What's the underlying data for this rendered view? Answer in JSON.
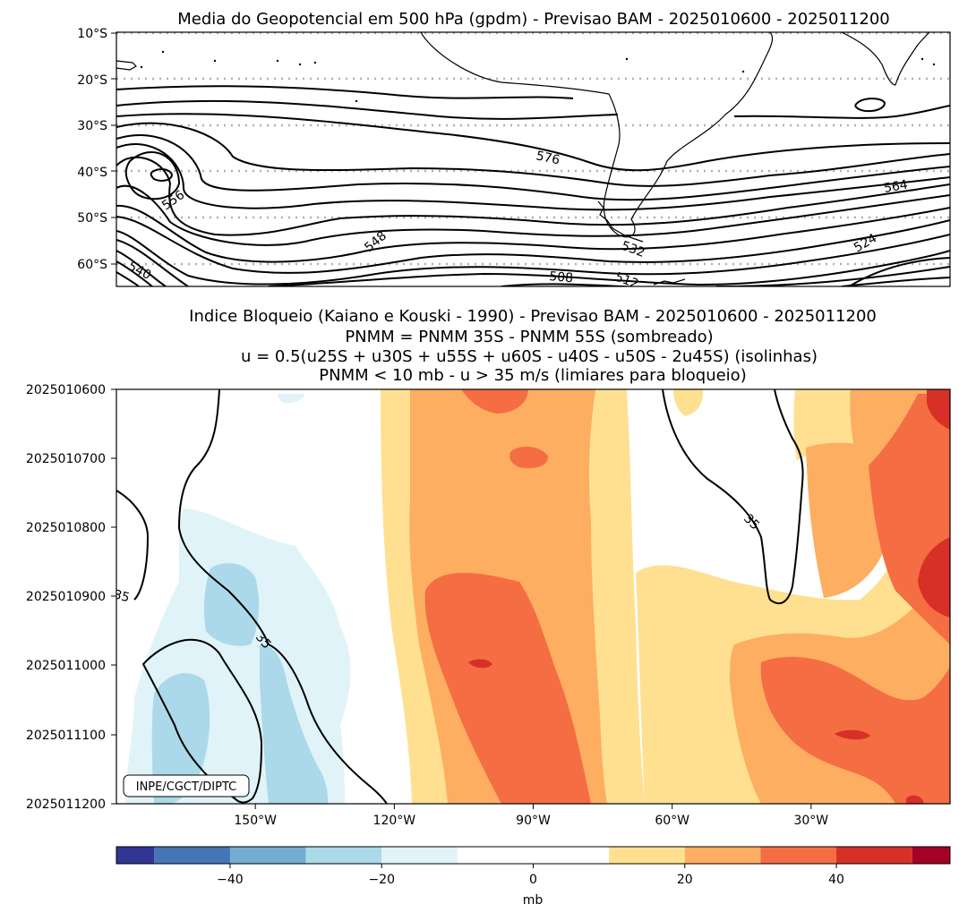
{
  "chart_data": [
    {
      "type": "contour-map",
      "title": "Media do Geopotencial em 500 hPa (gpdm) - Previsao BAM - 2025010600 - 2025011200",
      "ytick_labels": [
        "10°S",
        "20°S",
        "30°S",
        "40°S",
        "50°S",
        "60°S"
      ],
      "lat_range": [
        -65,
        -10
      ],
      "lon_range": [
        -180,
        0
      ],
      "lat_gridlines": [
        -10,
        -20,
        -30,
        -40,
        -50,
        -60
      ],
      "contour_interval": 4,
      "contour_labels": [
        "576",
        "556",
        "564",
        "548",
        "540",
        "532",
        "508",
        "512",
        "524"
      ],
      "grid": "dotted latitude lines"
    },
    {
      "type": "hovmoller-filled-contour",
      "title_lines": [
        "Indice Bloqueio (Kaiano e Kouski - 1990) - Previsao BAM - 2025010600 - 2025011200",
        "PNMM = PNMM 35S - PNMM 55S (sombreado)",
        "u = 0.5(u25S + u30S + u55S + u60S - u40S - u50S - 2u45S) (isolinhas)",
        "PNMM < 10 mb - u > 35 m/s (limiares para bloqueio)"
      ],
      "x_range": [
        -180,
        0
      ],
      "xtick_values": [
        -150,
        -120,
        -90,
        -60,
        -30
      ],
      "xtick_labels": [
        "150°W",
        "120°W",
        "90°W",
        "60°W",
        "30°W"
      ],
      "ytick_labels": [
        "2025010600",
        "2025010700",
        "2025010800",
        "2025010900",
        "2025011000",
        "2025011100",
        "2025011200"
      ],
      "contour_level": 35,
      "contour_labels": [
        "35",
        "35",
        "35"
      ],
      "credit": "INPE/CGCT/DIPTC",
      "colorbar": {
        "levels": [
          -55,
          -50,
          -40,
          -30,
          -20,
          -10,
          10,
          20,
          30,
          40,
          50,
          55
        ],
        "colors": [
          "#313695",
          "#4575b4",
          "#74add1",
          "#abd9e9",
          "#e0f3f8",
          "#ffffff",
          "#fee090",
          "#fdae61",
          "#f46d43",
          "#d73027",
          "#a50026"
        ],
        "tick_values": [
          -40,
          -20,
          0,
          20,
          40
        ],
        "tick_labels": [
          "−40",
          "−20",
          "0",
          "20",
          "40"
        ],
        "label": "mb"
      }
    }
  ]
}
